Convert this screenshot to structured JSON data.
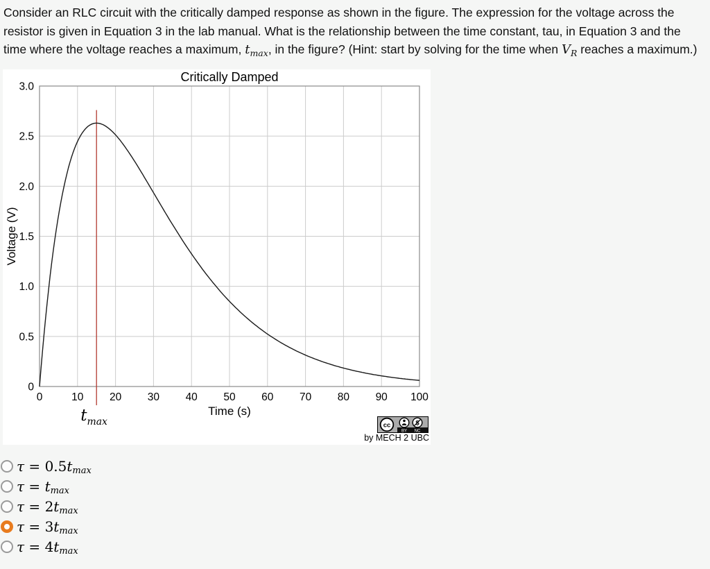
{
  "page": {
    "background": "#f5f6f5",
    "panel_background": "#ffffff"
  },
  "question": {
    "parts": [
      {
        "text": "Consider an RLC circuit with the critically damped response as shown in the figure. The expression for the voltage across the resistor is given in Equation 3 in the lab manual. What is the relationship between the time constant, tau, in Equation 3 and the time where the voltage reaches a maximum, ",
        "style": "normal"
      },
      {
        "text": "t",
        "style": "math"
      },
      {
        "text": "max",
        "style": "mathsub"
      },
      {
        "text": ", in the figure? (Hint: start by solving for the time when ",
        "style": "normal"
      },
      {
        "text": "V",
        "style": "math"
      },
      {
        "text": "R",
        "style": "mathsub"
      },
      {
        "text": " reaches a maximum.)",
        "style": "normal"
      }
    ]
  },
  "chart": {
    "attribution": "by MECH 2 UBC",
    "badge": {
      "cc": "cc",
      "by": "BY",
      "nc": "NC",
      "icons": [
        "cc-icon",
        "attribution-person-icon",
        "no-commercial-dollar-icon"
      ],
      "background": "#ababab"
    }
  },
  "chart_data": {
    "type": "line",
    "title": "Critically Damped",
    "xlabel": "Time (s)",
    "ylabel": "Voltage (V)",
    "xlim": [
      0,
      100
    ],
    "ylim": [
      0,
      3.0
    ],
    "x_tick_values": [
      0,
      10,
      20,
      30,
      40,
      50,
      60,
      70,
      80,
      90,
      100
    ],
    "x_tick_labels": [
      "0",
      "10",
      "20",
      "30",
      "40",
      "50",
      "60",
      "70",
      "80",
      "90",
      "100"
    ],
    "y_tick_values": [
      0,
      0.5,
      1.0,
      1.5,
      2.0,
      2.5,
      3.0
    ],
    "y_tick_labels": [
      "0",
      "0.5",
      "1.0",
      "1.5",
      "2.0",
      "2.5",
      "3.0"
    ],
    "grid": true,
    "grid_color": "#cccccc",
    "frame_color": "#8a8a8a",
    "curve": {
      "model": "v(t) = v_max * (t / t_max) * exp(1 - t / t_max)",
      "t_max": 15,
      "v_max": 2.63,
      "color": "#1a1a1a"
    },
    "key_points": {
      "start": {
        "t": 0,
        "v": 0
      },
      "peak": {
        "t": 15,
        "v": 2.63
      },
      "end": {
        "t": 100,
        "v": 0.06
      }
    },
    "marker_line": {
      "x": 15,
      "top_v": 2.76,
      "color": "#b23a32",
      "label_base": "t",
      "label_sub": "max"
    },
    "legend": null
  },
  "radio_group": {
    "selected_color": "#e87b1e",
    "unselected_border": "#9a9a9a",
    "options": [
      {
        "tau": "τ",
        "eq": " = ",
        "coef": "0.5",
        "variable": "t",
        "sub": "max",
        "selected": false
      },
      {
        "tau": "τ",
        "eq": " = ",
        "coef": "",
        "variable": "t",
        "sub": "max",
        "selected": false
      },
      {
        "tau": "τ",
        "eq": " = ",
        "coef": "2",
        "variable": "t",
        "sub": "max",
        "selected": false
      },
      {
        "tau": "τ",
        "eq": " = ",
        "coef": "3",
        "variable": "t",
        "sub": "max",
        "selected": true
      },
      {
        "tau": "τ",
        "eq": " = ",
        "coef": "4",
        "variable": "t",
        "sub": "max",
        "selected": false
      }
    ]
  }
}
